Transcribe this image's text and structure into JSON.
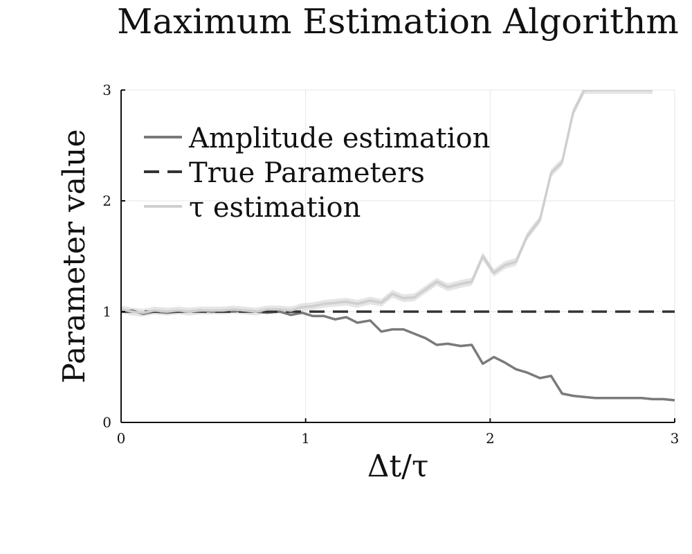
{
  "chart_data": {
    "type": "line",
    "title": "Maximum Estimation Algorithm",
    "xlabel": "Δt/τ",
    "ylabel": "Parameter value",
    "xlim": [
      0,
      3
    ],
    "ylim": [
      0,
      3
    ],
    "xticks": [
      0,
      1,
      2,
      3
    ],
    "yticks": [
      0,
      1,
      2,
      3
    ],
    "xtick_labels": [
      "0",
      "1",
      "2",
      "3"
    ],
    "ytick_labels": [
      "0",
      "1",
      "2",
      "3"
    ],
    "grid": true,
    "legend_position": "top-left",
    "series": [
      {
        "name": "Amplitude estimation",
        "color": "#7a7a7a",
        "style": "solid",
        "band": 0.01,
        "x": [
          0,
          0.06,
          0.12,
          0.18,
          0.25,
          0.31,
          0.37,
          0.43,
          0.49,
          0.55,
          0.61,
          0.67,
          0.73,
          0.79,
          0.86,
          0.92,
          0.98,
          1.04,
          1.1,
          1.16,
          1.22,
          1.28,
          1.35,
          1.41,
          1.47,
          1.53,
          1.59,
          1.65,
          1.71,
          1.77,
          1.84,
          1.9,
          1.96,
          2.02,
          2.08,
          2.14,
          2.2,
          2.27,
          2.33,
          2.39,
          2.45,
          2.51,
          2.57,
          2.63,
          2.69,
          2.76,
          2.82,
          2.88,
          2.94,
          3.0
        ],
        "y": [
          1.0,
          1.01,
          0.98,
          1.0,
          0.99,
          1.0,
          1.0,
          1.01,
          1.0,
          1.0,
          1.0,
          1.01,
          1.0,
          0.99,
          1.0,
          0.97,
          0.99,
          0.96,
          0.96,
          0.93,
          0.95,
          0.9,
          0.92,
          0.82,
          0.84,
          0.84,
          0.8,
          0.76,
          0.7,
          0.71,
          0.69,
          0.7,
          0.53,
          0.59,
          0.54,
          0.48,
          0.45,
          0.4,
          0.42,
          0.26,
          0.24,
          0.23,
          0.22,
          0.22,
          0.22,
          0.22,
          0.22,
          0.21,
          0.21,
          0.2
        ]
      },
      {
        "name": "True Parameters",
        "color": "#333333",
        "style": "dashed",
        "x": [
          0,
          3
        ],
        "y": [
          1,
          1
        ]
      },
      {
        "name": "τ estimation",
        "color": "#cfcfcf",
        "style": "solid",
        "band": 0.035,
        "x": [
          0,
          0.06,
          0.12,
          0.18,
          0.25,
          0.31,
          0.37,
          0.43,
          0.49,
          0.55,
          0.61,
          0.67,
          0.73,
          0.79,
          0.86,
          0.92,
          0.98,
          1.04,
          1.1,
          1.16,
          1.22,
          1.28,
          1.35,
          1.41,
          1.47,
          1.53,
          1.59,
          1.65,
          1.71,
          1.77,
          1.84,
          1.9,
          1.96,
          2.02,
          2.08,
          2.14,
          2.2,
          2.27,
          2.33,
          2.39,
          2.45,
          2.51,
          2.57,
          2.63,
          2.69,
          2.76,
          2.82,
          2.88
        ],
        "y": [
          1.02,
          1.0,
          0.99,
          1.01,
          1.0,
          1.01,
          1.0,
          1.01,
          1.01,
          1.01,
          1.02,
          1.01,
          1.0,
          1.02,
          1.02,
          1.01,
          1.04,
          1.05,
          1.07,
          1.08,
          1.09,
          1.07,
          1.1,
          1.08,
          1.16,
          1.12,
          1.13,
          1.2,
          1.27,
          1.22,
          1.25,
          1.27,
          1.5,
          1.35,
          1.42,
          1.45,
          1.68,
          1.83,
          2.25,
          2.35,
          2.8,
          3.0,
          3.0,
          3.0,
          3.0,
          3.0,
          3.0,
          3.0
        ]
      }
    ]
  }
}
